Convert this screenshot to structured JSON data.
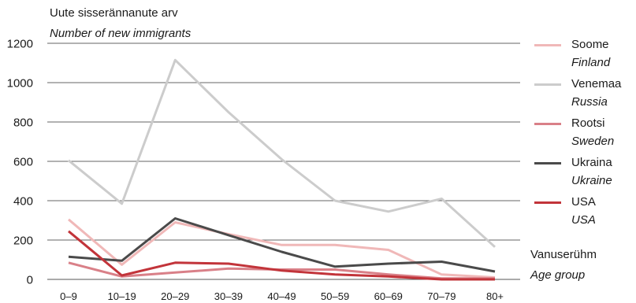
{
  "chart_data": {
    "type": "line",
    "ylabel": [
      "Uute sisserännanute arv",
      "Number of new immigrants"
    ],
    "xlabel": [
      "Vanuserühm",
      "Age group"
    ],
    "categories": [
      "0–9",
      "10–19",
      "20–29",
      "30–39",
      "40–49",
      "50–59",
      "60–69",
      "70–79",
      "80+"
    ],
    "ylim": [
      0,
      1200
    ],
    "yticks": [
      0,
      200,
      400,
      600,
      800,
      1000,
      1200
    ],
    "grid": "horizontal",
    "legend_position": "right",
    "series": [
      {
        "name": "Soome",
        "name_en": "Finland",
        "color": "#f0b8b8",
        "values": [
          305,
          75,
          290,
          230,
          175,
          175,
          150,
          25,
          10
        ]
      },
      {
        "name": "Venemaa",
        "name_en": "Russia",
        "color": "#cccccc",
        "values": [
          605,
          385,
          1115,
          850,
          610,
          400,
          345,
          410,
          165
        ]
      },
      {
        "name": "Rootsi",
        "name_en": "Sweden",
        "color": "#d98088",
        "values": [
          85,
          15,
          35,
          55,
          50,
          50,
          25,
          5,
          5
        ]
      },
      {
        "name": "Ukraina",
        "name_en": "Ukraine",
        "color": "#4a4a4a",
        "values": [
          115,
          95,
          310,
          225,
          140,
          65,
          80,
          90,
          40
        ]
      },
      {
        "name": "USA",
        "name_en": "USA",
        "color": "#c2343a",
        "values": [
          245,
          20,
          85,
          80,
          45,
          25,
          15,
          0,
          0
        ]
      }
    ]
  }
}
